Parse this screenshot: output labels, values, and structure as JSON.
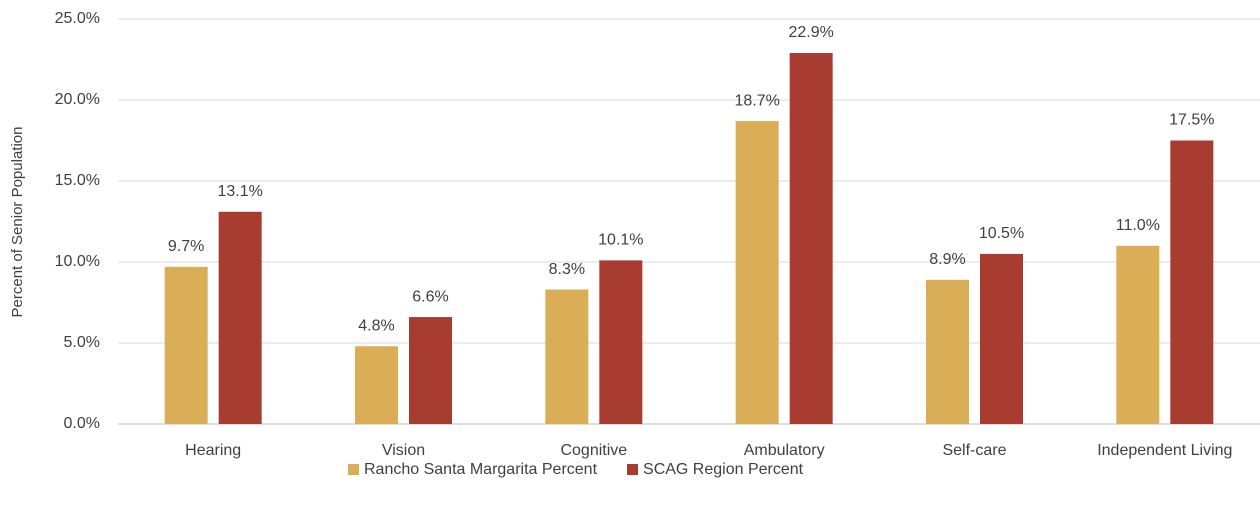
{
  "chart_data": {
    "type": "bar",
    "y_label": "Percent of Senior Population",
    "categories": [
      "Hearing",
      "Vision",
      "Cognitive",
      "Ambulatory",
      "Self-care",
      "Independent Living"
    ],
    "series": [
      {
        "name": "Rancho Santa Margarita Percent",
        "color": "#d9ae57",
        "values": [
          9.7,
          4.8,
          8.3,
          18.7,
          8.9,
          11.0
        ],
        "value_labels": [
          "9.7%",
          "4.8%",
          "8.3%",
          "18.7%",
          "8.9%",
          "11.0%"
        ]
      },
      {
        "name": "SCAG Region Percent",
        "color": "#a83c30",
        "values": [
          13.1,
          6.6,
          10.1,
          22.9,
          10.5,
          17.5
        ],
        "value_labels": [
          "13.1%",
          "6.6%",
          "10.1%",
          "22.9%",
          "10.5%",
          "17.5%"
        ]
      }
    ],
    "ylim": [
      0,
      25
    ],
    "yticks": [
      {
        "value": 0,
        "label": "0.0%"
      },
      {
        "value": 5,
        "label": "5.0%"
      },
      {
        "value": 10,
        "label": "10.0%"
      },
      {
        "value": 15,
        "label": "15.0%"
      },
      {
        "value": 20,
        "label": "20.0%"
      },
      {
        "value": 25,
        "label": "25.0%"
      }
    ],
    "grid": true,
    "legend": "bottom"
  }
}
